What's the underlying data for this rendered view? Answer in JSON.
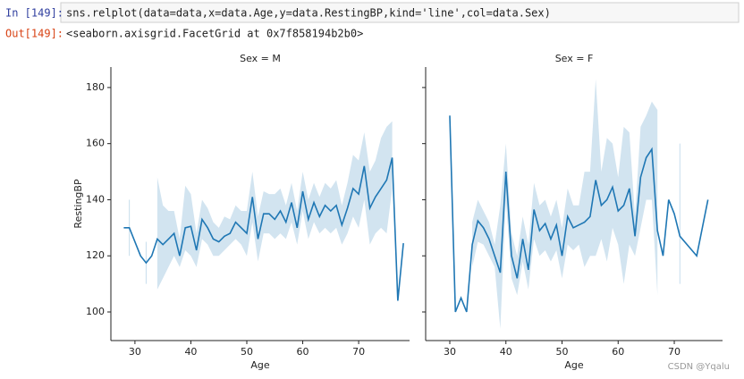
{
  "cell": {
    "prompt_in": "In [149]:",
    "code": "sns.relplot(data=data,x=data.Age,y=data.RestingBP,kind='line',col=data.Sex)",
    "prompt_out": "Out[149]:",
    "output": "<seaborn.axisgrid.FacetGrid at 0x7f858194b2b0>"
  },
  "watermark": "CSDN @Yqalu",
  "chart_data": [
    {
      "type": "line",
      "title": "Sex = M",
      "x_label": "Age",
      "y_label": "RestingBP",
      "color": "#1f77b4",
      "x": [
        28,
        29,
        31,
        32,
        33,
        34,
        35,
        36,
        37,
        38,
        39,
        40,
        41,
        42,
        43,
        44,
        45,
        46,
        47,
        48,
        49,
        50,
        51,
        52,
        53,
        54,
        55,
        56,
        57,
        58,
        59,
        60,
        61,
        62,
        63,
        64,
        65,
        66,
        67,
        68,
        69,
        70,
        71,
        72,
        73,
        74,
        75,
        76,
        77,
        78
      ],
      "values": [
        130,
        130,
        120,
        117.5,
        120,
        126,
        124,
        126,
        128,
        120,
        130,
        130.5,
        122,
        133,
        130,
        126,
        125,
        127,
        128,
        132,
        130,
        128,
        141,
        126,
        135,
        135,
        133,
        136,
        132,
        139,
        130,
        143,
        133,
        139,
        134,
        138,
        136,
        138,
        131,
        137,
        144,
        142,
        152,
        137,
        141,
        144,
        147,
        155,
        104,
        124.5
      ],
      "band_low": [
        null,
        120,
        null,
        110,
        null,
        108,
        112,
        116,
        120,
        116,
        122,
        120,
        116,
        126,
        124,
        120,
        120,
        122,
        124,
        126,
        124,
        120,
        132,
        118,
        128,
        128,
        126,
        128,
        126,
        132,
        124,
        136,
        126,
        132,
        128,
        130,
        128,
        130,
        124,
        128,
        134,
        130,
        140,
        124,
        128,
        130,
        128,
        144,
        null,
        null
      ],
      "band_high": [
        null,
        140,
        null,
        125,
        null,
        148,
        138,
        136,
        136,
        126,
        145,
        142,
        128,
        140,
        137,
        132,
        130,
        134,
        133,
        138,
        136,
        136,
        150,
        134,
        143,
        142,
        142,
        144,
        138,
        146,
        136,
        150,
        140,
        146,
        141,
        146,
        144,
        147,
        138,
        146,
        156,
        154,
        164,
        150,
        154,
        162,
        166,
        168,
        null,
        null
      ],
      "xlim": [
        25.7,
        79.1
      ],
      "ylim": [
        89.8,
        187.3
      ],
      "xticks": [
        30,
        40,
        50,
        60,
        70
      ],
      "yticks": [
        100,
        120,
        140,
        160,
        180
      ],
      "show_y_labels": true
    },
    {
      "type": "line",
      "title": "Sex = F",
      "x_label": "Age",
      "color": "#1f77b4",
      "x": [
        30,
        31,
        32,
        33,
        34,
        35,
        36,
        37,
        38,
        39,
        40,
        41,
        42,
        43,
        44,
        45,
        46,
        47,
        48,
        49,
        50,
        51,
        52,
        53,
        54,
        55,
        56,
        57,
        58,
        59,
        60,
        61,
        62,
        63,
        64,
        65,
        66,
        67,
        68,
        69,
        70,
        71,
        74,
        76
      ],
      "values": [
        170,
        100,
        105,
        100,
        124,
        132.5,
        130,
        126,
        120,
        114,
        150,
        120,
        112,
        126,
        115,
        136.5,
        129,
        131.5,
        126,
        131,
        120,
        134,
        130,
        131,
        132,
        134,
        147,
        138,
        140,
        144.5,
        136,
        138,
        144,
        127,
        148,
        155,
        158,
        129,
        120,
        140,
        135,
        127,
        120,
        140
      ],
      "band_low": [
        null,
        null,
        null,
        null,
        116,
        125,
        124,
        120,
        116,
        94,
        140,
        112,
        106,
        118,
        108,
        126,
        120,
        122,
        118,
        122,
        112,
        124,
        122,
        124,
        116,
        120,
        120,
        126,
        118,
        130,
        124,
        110,
        124,
        120,
        130,
        140,
        140,
        106,
        null,
        null,
        null,
        110,
        null,
        null
      ],
      "band_high": [
        null,
        null,
        null,
        null,
        132,
        140,
        136,
        132,
        124,
        138,
        160,
        128,
        120,
        134,
        124,
        146,
        138,
        140,
        134,
        140,
        130,
        144,
        138,
        138,
        150,
        150,
        183,
        150,
        162,
        160,
        148,
        166,
        164,
        134,
        166,
        170,
        175,
        172,
        null,
        null,
        null,
        160,
        null,
        null
      ],
      "xlim": [
        25.7,
        78.6
      ],
      "ylim": [
        89.8,
        187.3
      ],
      "xticks": [
        30,
        40,
        50,
        60,
        70
      ],
      "yticks": [
        100,
        120,
        140,
        160,
        180
      ],
      "show_y_labels": false
    }
  ]
}
